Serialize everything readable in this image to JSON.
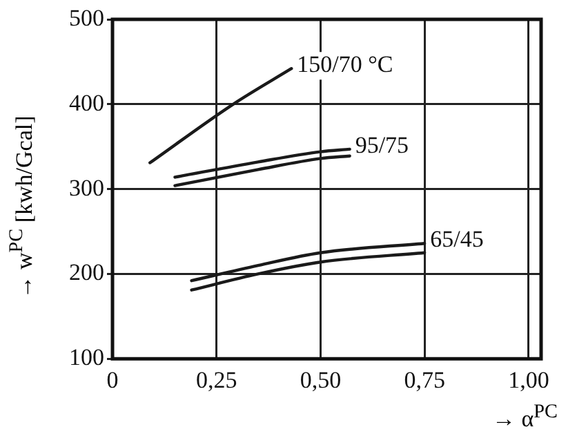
{
  "chart_data": {
    "type": "line",
    "xlabel": "→ α$^{PC}$",
    "ylabel": "→ w$^{PC}$ [kwh/Gcal]",
    "series": [
      {
        "name": "150/70 °C",
        "color": "#1a1a1a",
        "x": [
          0.09,
          0.29,
          0.43
        ],
        "values": [
          331,
          400,
          442
        ]
      },
      {
        "name": "95/75",
        "color": "#1a1a1a",
        "x": [
          0.15,
          0.35,
          0.5,
          0.57
        ],
        "values": [
          314,
          332,
          344,
          347
        ]
      },
      {
        "color": "#1a1a1a",
        "x": [
          0.15,
          0.35,
          0.5,
          0.57
        ],
        "values": [
          304,
          323,
          336,
          339
        ]
      },
      {
        "name": "65/45",
        "color": "#1a1a1a",
        "x": [
          0.19,
          0.35,
          0.5,
          0.75
        ],
        "values": [
          192,
          210,
          225,
          236
        ]
      },
      {
        "color": "#1a1a1a",
        "x": [
          0.19,
          0.35,
          0.5,
          0.75
        ],
        "values": [
          181,
          200,
          214,
          225
        ]
      }
    ],
    "xlim": [
      0,
      1.03
    ],
    "xticks": [
      {
        "value": 0,
        "label": "0"
      },
      {
        "value": 0.25,
        "label": "0,25"
      },
      {
        "value": 0.5,
        "label": "0,50"
      },
      {
        "value": 0.75,
        "label": "0,75"
      },
      {
        "value": 1,
        "label": "1,00"
      }
    ],
    "ylim": [
      100,
      500
    ],
    "yticks": [
      100,
      200,
      300,
      400,
      500
    ],
    "grid": true,
    "legend": false,
    "marker": "none",
    "line_style": "solid"
  }
}
